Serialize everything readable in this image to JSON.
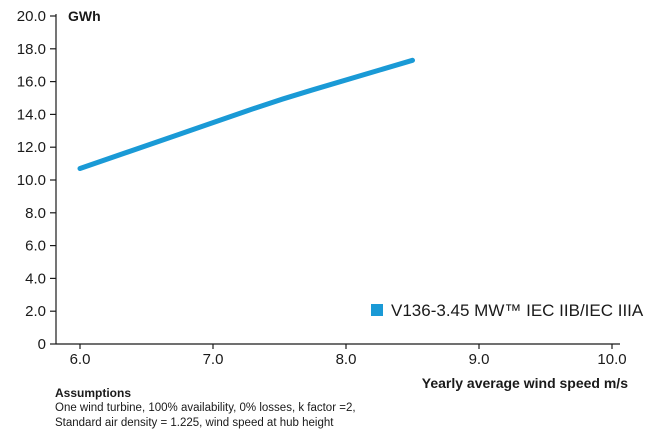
{
  "chart_data": {
    "type": "line",
    "title": "",
    "ylabel": "GWh",
    "xlabel": "Yearly average wind speed m/s",
    "x_ticks": [
      "6.0",
      "7.0",
      "8.0",
      "9.0",
      "10.0"
    ],
    "y_ticks": [
      "0",
      "2.0",
      "4.0",
      "6.0",
      "8.0",
      "10.0",
      "12.0",
      "14.0",
      "16.0",
      "18.0",
      "20.0"
    ],
    "xlim": [
      6.0,
      10.0
    ],
    "ylim": [
      0,
      20.0
    ],
    "grid": false,
    "legend_position": "bottom-right",
    "series": [
      {
        "name": "V136-3.45 MW™ IEC IIB/IEC IIIA",
        "color": "#1a9ad6",
        "x": [
          6.0,
          6.5,
          7.0,
          7.5,
          8.0,
          8.5
        ],
        "y": [
          10.7,
          12.1,
          13.5,
          14.9,
          16.1,
          17.3
        ]
      }
    ]
  },
  "notes": {
    "title": "Assumptions",
    "line1": "One wind turbine, 100% availability, 0% losses, k factor =2,",
    "line2": "Standard air density = 1.225, wind speed at hub height"
  }
}
